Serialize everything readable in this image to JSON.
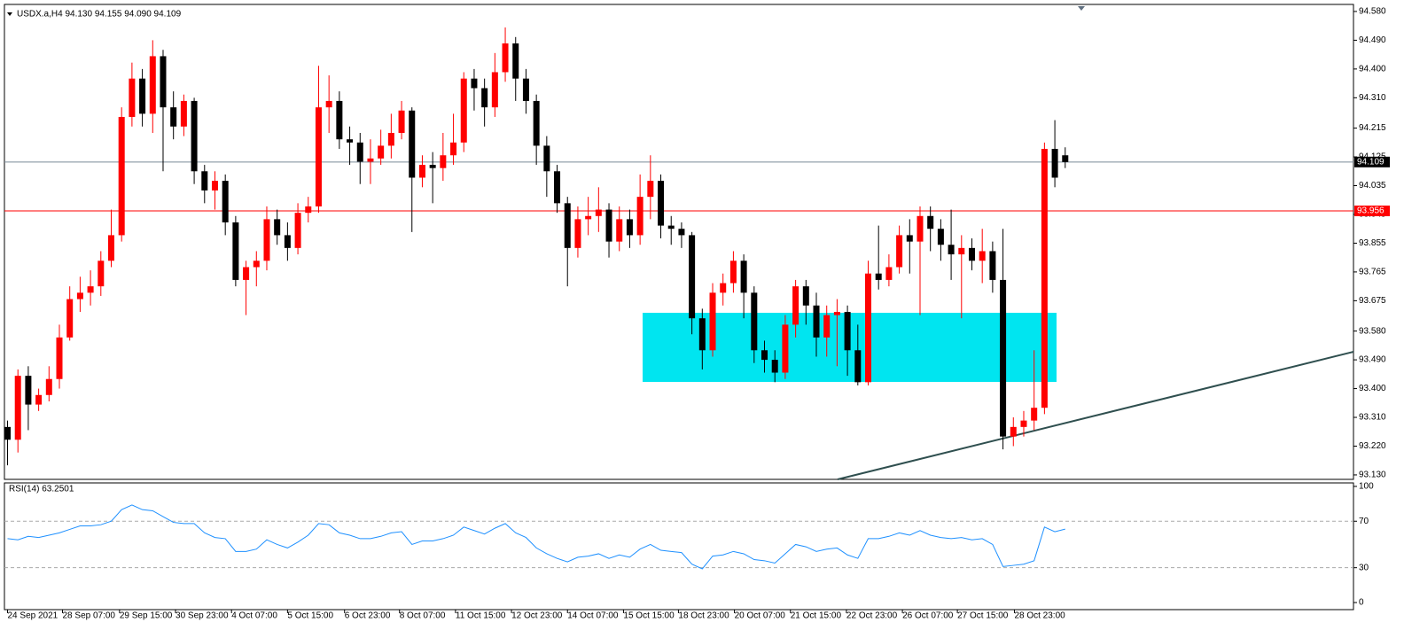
{
  "chart_data": [
    {
      "type": "candlestick",
      "title": "USDX.a,H4  94.130 94.155 94.090 94.109",
      "up_color": "#ff0000",
      "down_color": "#000000",
      "xlim": [
        -0.3,
        129.8
      ],
      "ylim": [
        93.116,
        94.602
      ],
      "yticks": [
        {
          "value": 94.58,
          "label": "94.580"
        },
        {
          "value": 94.49,
          "label": "94.490"
        },
        {
          "value": 94.4,
          "label": "94.400"
        },
        {
          "value": 94.31,
          "label": "94.310"
        },
        94.215,
        94.125,
        94.035,
        93.945,
        93.855,
        93.765,
        93.675,
        {
          "value": 93.58,
          "label": "93.580"
        },
        {
          "value": 93.49,
          "label": "93.490"
        },
        {
          "value": 93.4,
          "label": "93.400"
        },
        {
          "value": 93.31,
          "label": "93.310"
        },
        {
          "value": 93.22,
          "label": "93.220"
        },
        {
          "value": 93.13,
          "label": "93.130"
        }
      ],
      "hlines": [
        {
          "value": 94.109,
          "color": "#7a8a99",
          "label_bg": "#000000"
        },
        {
          "value": 93.956,
          "color": "#ff0000",
          "label_bg": "#ff0000"
        }
      ],
      "open": [
        93.28,
        93.24,
        93.44,
        93.35,
        93.38,
        93.43,
        93.56,
        93.68,
        93.7,
        93.72,
        93.8,
        93.88,
        94.25,
        94.37,
        94.26,
        94.44,
        94.28,
        94.22,
        94.3,
        94.08,
        94.02,
        94.05,
        93.92,
        93.74,
        93.78,
        93.8,
        93.93,
        93.88,
        93.84,
        93.95,
        93.97,
        94.28,
        94.3,
        94.18,
        94.17,
        94.11,
        94.12,
        94.16,
        94.2,
        94.27,
        94.06,
        94.1,
        94.09,
        94.13,
        94.17,
        94.37,
        94.34,
        94.28,
        94.39,
        94.48,
        94.37,
        94.3,
        94.16,
        94.08,
        93.98,
        93.84,
        93.93,
        93.94,
        93.96,
        93.86,
        93.93,
        93.88,
        94.0,
        94.05,
        93.91,
        93.9,
        93.88,
        93.62,
        93.52,
        93.7,
        93.73,
        93.8,
        93.7,
        93.52,
        93.49,
        93.45,
        93.6,
        93.72,
        93.66,
        93.56,
        93.63,
        93.64,
        93.52,
        93.42,
        93.76,
        93.74,
        93.78,
        93.88,
        93.86,
        93.94,
        93.9,
        93.85,
        93.82,
        93.84,
        93.8,
        93.83,
        93.74,
        93.25,
        93.28,
        93.3,
        93.34,
        94.15,
        94.13
      ],
      "high": [
        93.3,
        93.46,
        93.47,
        93.4,
        93.47,
        93.6,
        93.72,
        93.75,
        93.77,
        93.83,
        93.96,
        94.28,
        94.42,
        94.4,
        94.49,
        94.46,
        94.33,
        94.32,
        94.31,
        94.1,
        94.08,
        94.07,
        93.94,
        93.8,
        93.83,
        93.97,
        93.96,
        93.92,
        93.98,
        94.0,
        94.41,
        94.38,
        94.33,
        94.22,
        94.2,
        94.18,
        94.21,
        94.26,
        94.3,
        94.28,
        94.13,
        94.14,
        94.2,
        94.26,
        94.39,
        94.4,
        94.37,
        94.45,
        94.53,
        94.5,
        94.4,
        94.32,
        94.19,
        94.1,
        94.0,
        93.97,
        94.0,
        94.03,
        93.98,
        93.97,
        93.96,
        94.07,
        94.13,
        94.07,
        93.94,
        93.92,
        93.89,
        93.65,
        93.73,
        93.76,
        93.83,
        93.82,
        93.72,
        93.55,
        93.52,
        93.63,
        93.74,
        93.74,
        93.7,
        93.66,
        93.68,
        93.66,
        93.6,
        93.8,
        93.91,
        93.82,
        93.91,
        93.93,
        93.97,
        93.97,
        93.93,
        93.96,
        93.88,
        93.87,
        93.9,
        93.86,
        93.9,
        93.31,
        93.33,
        93.52,
        94.17,
        94.24,
        94.155
      ],
      "low": [
        93.16,
        93.2,
        93.27,
        93.33,
        93.36,
        93.4,
        93.55,
        93.64,
        93.66,
        93.69,
        93.78,
        93.86,
        94.22,
        94.22,
        94.2,
        94.08,
        94.18,
        94.19,
        94.04,
        93.98,
        93.96,
        93.88,
        93.72,
        93.63,
        93.72,
        93.77,
        93.85,
        93.8,
        93.82,
        93.92,
        93.95,
        94.2,
        94.15,
        94.1,
        94.04,
        94.04,
        94.1,
        94.12,
        94.18,
        93.89,
        94.03,
        93.98,
        94.05,
        94.1,
        94.14,
        94.27,
        94.22,
        94.25,
        94.36,
        94.3,
        94.26,
        94.1,
        94.0,
        93.95,
        93.72,
        93.81,
        93.88,
        93.89,
        93.81,
        93.83,
        93.84,
        93.85,
        93.93,
        93.87,
        93.85,
        93.84,
        93.57,
        93.46,
        93.5,
        93.66,
        93.7,
        93.62,
        93.48,
        93.45,
        93.42,
        93.43,
        93.56,
        93.6,
        93.5,
        93.5,
        93.47,
        93.44,
        93.41,
        93.41,
        93.71,
        93.72,
        93.76,
        93.76,
        93.63,
        93.83,
        93.8,
        93.74,
        93.62,
        93.77,
        93.73,
        93.7,
        93.21,
        93.22,
        93.25,
        93.27,
        93.32,
        94.03,
        94.09
      ],
      "close": [
        93.24,
        93.44,
        93.35,
        93.38,
        93.43,
        93.56,
        93.68,
        93.7,
        93.72,
        93.8,
        93.88,
        94.25,
        94.37,
        94.26,
        94.44,
        94.28,
        94.22,
        94.3,
        94.08,
        94.02,
        94.05,
        93.92,
        93.74,
        93.78,
        93.8,
        93.93,
        93.88,
        93.84,
        93.95,
        93.97,
        94.28,
        94.3,
        94.18,
        94.17,
        94.11,
        94.12,
        94.16,
        94.2,
        94.27,
        94.06,
        94.1,
        94.09,
        94.13,
        94.17,
        94.37,
        94.34,
        94.28,
        94.39,
        94.48,
        94.37,
        94.3,
        94.16,
        94.08,
        93.98,
        93.84,
        93.93,
        93.94,
        93.96,
        93.86,
        93.93,
        93.88,
        94.0,
        94.05,
        93.91,
        93.9,
        93.88,
        93.62,
        93.52,
        93.7,
        93.73,
        93.8,
        93.7,
        93.52,
        93.49,
        93.45,
        93.6,
        93.72,
        93.66,
        93.56,
        93.63,
        93.64,
        93.52,
        93.42,
        93.76,
        93.74,
        93.78,
        93.88,
        93.86,
        93.94,
        93.9,
        93.85,
        93.82,
        93.84,
        93.8,
        93.83,
        93.74,
        93.25,
        93.28,
        93.3,
        93.34,
        94.15,
        94.06,
        94.109
      ]
    },
    {
      "type": "line",
      "title": "RSI(14) 63.2501",
      "color": "#1e90ff",
      "xlim": [
        -0.3,
        129.8
      ],
      "ylim": [
        -6.1,
        103
      ],
      "yticks": [
        100,
        70,
        30,
        0
      ],
      "levels": [
        70,
        30
      ],
      "xticks": [
        {
          "value": 0,
          "label": "24 Sep 2021"
        },
        {
          "value": 5.3,
          "label": "28 Sep 07:00"
        },
        {
          "value": 10.8,
          "label": "29 Sep 15:00"
        },
        {
          "value": 16.2,
          "label": "30 Sep 23:00"
        },
        {
          "value": 21.6,
          "label": "4 Oct 07:00"
        },
        {
          "value": 27,
          "label": "5 Oct 15:00"
        },
        {
          "value": 32.5,
          "label": "6 Oct 23:00"
        },
        {
          "value": 37.8,
          "label": "8 Oct 07:00"
        },
        {
          "value": 43.2,
          "label": "11 Oct 15:00"
        },
        {
          "value": 48.6,
          "label": "12 Oct 23:00"
        },
        {
          "value": 54,
          "label": "14 Oct 07:00"
        },
        {
          "value": 59.4,
          "label": "15 Oct 15:00"
        },
        {
          "value": 64.7,
          "label": "18 Oct 23:00"
        },
        {
          "value": 70.1,
          "label": "20 Oct 07:00"
        },
        {
          "value": 75.5,
          "label": "21 Oct 15:00"
        },
        {
          "value": 80.9,
          "label": "22 Oct 23:00"
        },
        {
          "value": 86.3,
          "label": "26 Oct 07:00"
        },
        {
          "value": 91.6,
          "label": "27 Oct 15:00"
        },
        {
          "value": 97.1,
          "label": "28 Oct 23:00"
        }
      ],
      "values": [
        55,
        54,
        57,
        56,
        58,
        60,
        63,
        66,
        66,
        67,
        70,
        80,
        84,
        80,
        79,
        74,
        69,
        68,
        68,
        60,
        56,
        55,
        44,
        44,
        46,
        54,
        50,
        47,
        52,
        58,
        68,
        67,
        60,
        58,
        55,
        55,
        57,
        60,
        61,
        50,
        53,
        53,
        55,
        58,
        65,
        62,
        59,
        64,
        68,
        60,
        56,
        47,
        42,
        38,
        35,
        39,
        40,
        42,
        38,
        41,
        39,
        46,
        50,
        45,
        44,
        43,
        33,
        29,
        40,
        41,
        44,
        42,
        37,
        36,
        34,
        42,
        50,
        48,
        44,
        46,
        47,
        41,
        38,
        55,
        55,
        57,
        60,
        58,
        62,
        58,
        56,
        55,
        56,
        54,
        55,
        50,
        31,
        32,
        33,
        36,
        65,
        61,
        63.2501
      ]
    }
  ]
}
